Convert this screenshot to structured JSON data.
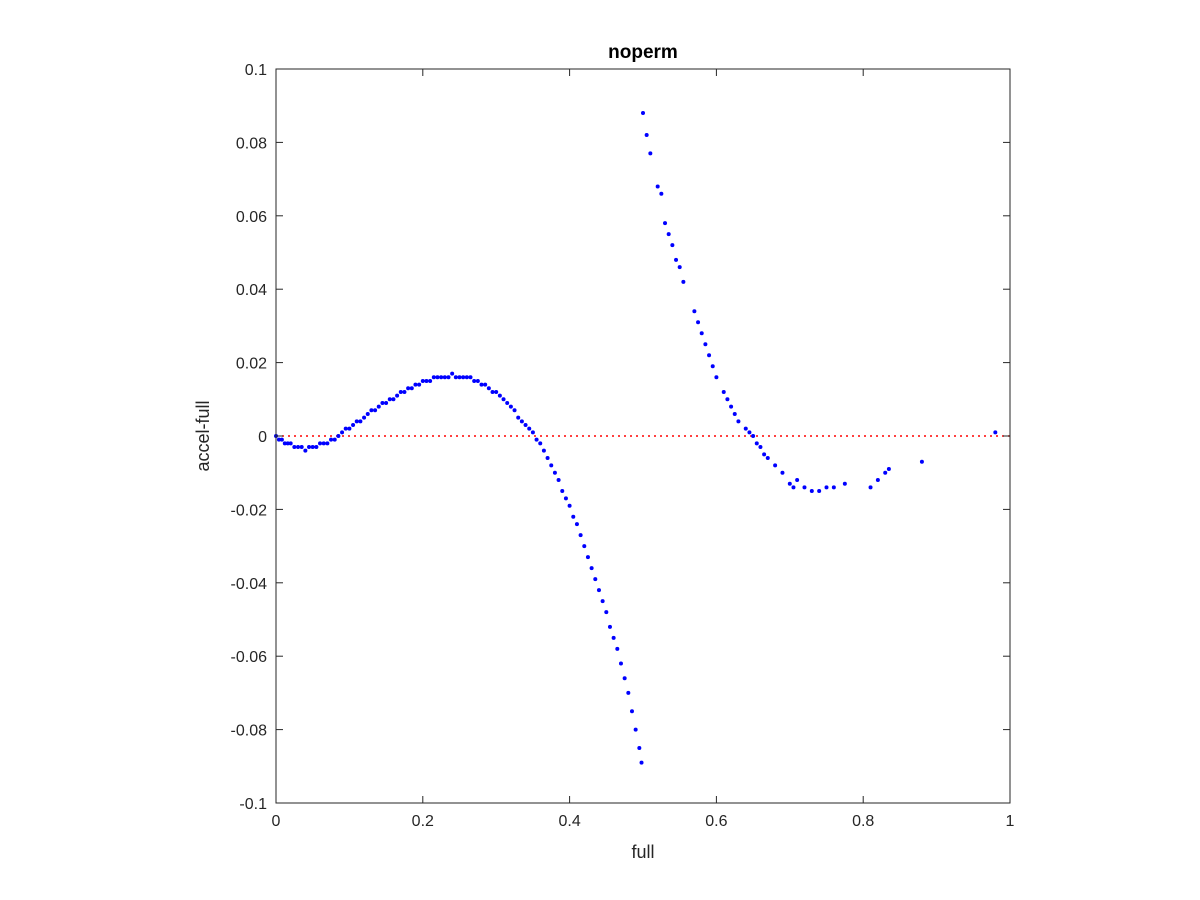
{
  "chart_data": {
    "type": "scatter",
    "title": "noperm",
    "xlabel": "full",
    "ylabel": "accel-full",
    "xlim": [
      0,
      1
    ],
    "ylim": [
      -0.1,
      0.1
    ],
    "xticks": [
      "0",
      "0.2",
      "0.4",
      "0.6",
      "0.8",
      "1"
    ],
    "yticks": [
      "-0.1",
      "-0.08",
      "-0.06",
      "-0.04",
      "-0.02",
      "0",
      "0.02",
      "0.04",
      "0.06",
      "0.08",
      "0.1"
    ],
    "grid": false,
    "legend": "none",
    "series_color": "#0000ff",
    "reference_line": {
      "y": 0,
      "color": "#ff0000",
      "style": "dotted"
    },
    "series": [
      {
        "points": [
          [
            0.0,
            0.0
          ],
          [
            0.004,
            -0.001
          ],
          [
            0.008,
            -0.001
          ],
          [
            0.012,
            -0.002
          ],
          [
            0.016,
            -0.002
          ],
          [
            0.02,
            -0.002
          ],
          [
            0.025,
            -0.003
          ],
          [
            0.03,
            -0.003
          ],
          [
            0.035,
            -0.003
          ],
          [
            0.04,
            -0.004
          ],
          [
            0.045,
            -0.003
          ],
          [
            0.05,
            -0.003
          ],
          [
            0.055,
            -0.003
          ],
          [
            0.06,
            -0.002
          ],
          [
            0.065,
            -0.002
          ],
          [
            0.07,
            -0.002
          ],
          [
            0.075,
            -0.001
          ],
          [
            0.08,
            -0.001
          ],
          [
            0.085,
            0.0
          ],
          [
            0.09,
            0.001
          ],
          [
            0.095,
            0.002
          ],
          [
            0.1,
            0.002
          ],
          [
            0.105,
            0.003
          ],
          [
            0.11,
            0.004
          ],
          [
            0.115,
            0.004
          ],
          [
            0.12,
            0.005
          ],
          [
            0.125,
            0.006
          ],
          [
            0.13,
            0.007
          ],
          [
            0.135,
            0.007
          ],
          [
            0.14,
            0.008
          ],
          [
            0.145,
            0.009
          ],
          [
            0.15,
            0.009
          ],
          [
            0.155,
            0.01
          ],
          [
            0.16,
            0.01
          ],
          [
            0.165,
            0.011
          ],
          [
            0.17,
            0.012
          ],
          [
            0.175,
            0.012
          ],
          [
            0.18,
            0.013
          ],
          [
            0.185,
            0.013
          ],
          [
            0.19,
            0.014
          ],
          [
            0.195,
            0.014
          ],
          [
            0.2,
            0.015
          ],
          [
            0.205,
            0.015
          ],
          [
            0.21,
            0.015
          ],
          [
            0.215,
            0.016
          ],
          [
            0.22,
            0.016
          ],
          [
            0.225,
            0.016
          ],
          [
            0.23,
            0.016
          ],
          [
            0.235,
            0.016
          ],
          [
            0.24,
            0.017
          ],
          [
            0.245,
            0.016
          ],
          [
            0.25,
            0.016
          ],
          [
            0.255,
            0.016
          ],
          [
            0.26,
            0.016
          ],
          [
            0.265,
            0.016
          ],
          [
            0.27,
            0.015
          ],
          [
            0.275,
            0.015
          ],
          [
            0.28,
            0.014
          ],
          [
            0.285,
            0.014
          ],
          [
            0.29,
            0.013
          ],
          [
            0.295,
            0.012
          ],
          [
            0.3,
            0.012
          ],
          [
            0.305,
            0.011
          ],
          [
            0.31,
            0.01
          ],
          [
            0.315,
            0.009
          ],
          [
            0.32,
            0.008
          ],
          [
            0.325,
            0.007
          ],
          [
            0.33,
            0.005
          ],
          [
            0.335,
            0.004
          ],
          [
            0.34,
            0.003
          ],
          [
            0.345,
            0.002
          ],
          [
            0.35,
            0.001
          ],
          [
            0.355,
            -0.001
          ],
          [
            0.36,
            -0.002
          ],
          [
            0.365,
            -0.004
          ],
          [
            0.37,
            -0.006
          ],
          [
            0.375,
            -0.008
          ],
          [
            0.38,
            -0.01
          ],
          [
            0.385,
            -0.012
          ],
          [
            0.39,
            -0.015
          ],
          [
            0.395,
            -0.017
          ],
          [
            0.4,
            -0.019
          ],
          [
            0.405,
            -0.022
          ],
          [
            0.41,
            -0.024
          ],
          [
            0.415,
            -0.027
          ],
          [
            0.42,
            -0.03
          ],
          [
            0.425,
            -0.033
          ],
          [
            0.43,
            -0.036
          ],
          [
            0.435,
            -0.039
          ],
          [
            0.44,
            -0.042
          ],
          [
            0.445,
            -0.045
          ],
          [
            0.45,
            -0.048
          ],
          [
            0.455,
            -0.052
          ],
          [
            0.46,
            -0.055
          ],
          [
            0.465,
            -0.058
          ],
          [
            0.47,
            -0.062
          ],
          [
            0.475,
            -0.066
          ],
          [
            0.48,
            -0.07
          ],
          [
            0.485,
            -0.075
          ],
          [
            0.49,
            -0.08
          ],
          [
            0.495,
            -0.085
          ],
          [
            0.498,
            -0.089
          ],
          [
            0.5,
            0.088
          ],
          [
            0.505,
            0.082
          ],
          [
            0.51,
            0.077
          ],
          [
            0.52,
            0.068
          ],
          [
            0.525,
            0.066
          ],
          [
            0.53,
            0.058
          ],
          [
            0.535,
            0.055
          ],
          [
            0.54,
            0.052
          ],
          [
            0.545,
            0.048
          ],
          [
            0.55,
            0.046
          ],
          [
            0.555,
            0.042
          ],
          [
            0.57,
            0.034
          ],
          [
            0.575,
            0.031
          ],
          [
            0.58,
            0.028
          ],
          [
            0.585,
            0.025
          ],
          [
            0.59,
            0.022
          ],
          [
            0.595,
            0.019
          ],
          [
            0.6,
            0.016
          ],
          [
            0.61,
            0.012
          ],
          [
            0.615,
            0.01
          ],
          [
            0.62,
            0.008
          ],
          [
            0.625,
            0.006
          ],
          [
            0.63,
            0.004
          ],
          [
            0.64,
            0.002
          ],
          [
            0.645,
            0.001
          ],
          [
            0.65,
            0.0
          ],
          [
            0.655,
            -0.002
          ],
          [
            0.66,
            -0.003
          ],
          [
            0.665,
            -0.005
          ],
          [
            0.67,
            -0.006
          ],
          [
            0.68,
            -0.008
          ],
          [
            0.69,
            -0.01
          ],
          [
            0.7,
            -0.013
          ],
          [
            0.705,
            -0.014
          ],
          [
            0.71,
            -0.012
          ],
          [
            0.72,
            -0.014
          ],
          [
            0.73,
            -0.015
          ],
          [
            0.74,
            -0.015
          ],
          [
            0.75,
            -0.014
          ],
          [
            0.76,
            -0.014
          ],
          [
            0.775,
            -0.013
          ],
          [
            0.81,
            -0.014
          ],
          [
            0.82,
            -0.012
          ],
          [
            0.83,
            -0.01
          ],
          [
            0.835,
            -0.009
          ],
          [
            0.88,
            -0.007
          ],
          [
            0.98,
            0.001
          ]
        ]
      }
    ]
  }
}
